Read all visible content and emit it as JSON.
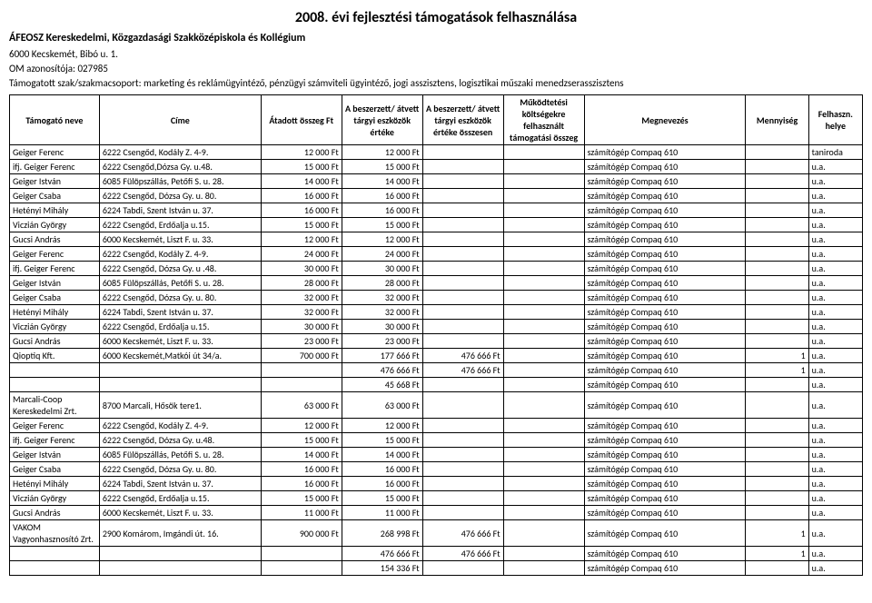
{
  "title": "2008. évi fejlesztési támogatások felhasználása",
  "subtitle": "ÁFEOSZ Kereskedelmi, Közgazdasági Szakközépiskola és Kollégium",
  "address": "6000 Kecskemét, Bibó u. 1.",
  "om": "OM azonosítója: 027985",
  "supported": "Támogatott szak/szakmacsoport: marketing és reklámügyintéző, pénzügyi számviteli ügyintéző, jogi asszisztens, logisztikai műszaki menedzserasszisztens",
  "columns": [
    "Támogató neve",
    "Címe",
    "Átadott összeg Ft",
    "A beszerzett/ átvett tárgyi eszközök értéke",
    "A beszerzett/ átvett tárgyi eszközök értéke összesen",
    "Működtetési költségekre felhasznált támogatási összeg",
    "Megnevezés",
    "Mennyiség",
    "Felhaszn. helye"
  ],
  "rows": [
    [
      "Geiger Ferenc",
      "6222 Csengőd, Kodály Z. 4-9.",
      "12 000 Ft",
      "12 000 Ft",
      "",
      "",
      "számítógép Compaq  610",
      "",
      "taniroda"
    ],
    [
      "ifj. Geiger Ferenc",
      "6222 Csengőd,Dózsa Gy. u.48.",
      "15 000 Ft",
      "15 000 Ft",
      "",
      "",
      "számítógép Compaq  610",
      "",
      "u.a."
    ],
    [
      "Geiger István",
      "6085 Fülöpszállás, Petőfi S. u. 28.",
      "14 000 Ft",
      "14 000 Ft",
      "",
      "",
      "számítógép Compaq  610",
      "",
      "u.a."
    ],
    [
      "Geiger Csaba",
      "6222 Csengőd, Dózsa Gy. u. 80.",
      "16 000 Ft",
      "16 000 Ft",
      "",
      "",
      "számítógép Compaq  610",
      "",
      "u.a."
    ],
    [
      "Hetényi Mihály",
      "6224 Tabdi, Szent István u. 37.",
      "16 000 Ft",
      "16 000 Ft",
      "",
      "",
      "számítógép Compaq  610",
      "",
      "u.a."
    ],
    [
      "Viczián György",
      "6222 Csengőd, Erdőalja u.15.",
      "15 000 Ft",
      "15 000 Ft",
      "",
      "",
      "számítógép Compaq  610",
      "",
      "u.a."
    ],
    [
      "Gucsi András",
      "6000 Kecskemét, Liszt F. u. 33.",
      "12 000 Ft",
      "12 000 Ft",
      "",
      "",
      "számítógép Compaq  610",
      "",
      "u.a."
    ],
    [
      "Geiger Ferenc",
      "6222 Csengőd, Kodály Z. 4-9.",
      "24 000 Ft",
      "24 000 Ft",
      "",
      "",
      "számítógép Compaq  610",
      "",
      "u.a."
    ],
    [
      "ifj. Geiger Ferenc",
      "6222 Csengőd, Dózsa Gy. u .48.",
      "30 000 Ft",
      "30 000 Ft",
      "",
      "",
      "számítógép Compaq  610",
      "",
      "u.a."
    ],
    [
      "Geiger István",
      "6085 Fülöpszállás, Petőfi S. u. 28.",
      "28 000 Ft",
      "28 000 Ft",
      "",
      "",
      "számítógép Compaq  610",
      "",
      "u.a."
    ],
    [
      "Geiger Csaba",
      "6222 Csengőd, Dózsa Gy. u. 80.",
      "32 000 Ft",
      "32 000 Ft",
      "",
      "",
      "számítógép Compaq  610",
      "",
      "u.a."
    ],
    [
      "Hetényi Mihály",
      "6224 Tabdi, Szent István u. 37.",
      "32 000 Ft",
      "32 000 Ft",
      "",
      "",
      "számítógép Compaq  610",
      "",
      "u.a."
    ],
    [
      "Viczián György",
      "6222 Csengőd, Erdőalja u.15.",
      "30 000 Ft",
      "30 000 Ft",
      "",
      "",
      "számítógép Compaq  610",
      "",
      "u.a."
    ],
    [
      "Gucsi András",
      "6000 Kecskemét, Liszt F. u. 33.",
      "23 000 Ft",
      "23 000 Ft",
      "",
      "",
      "számítógép Compaq  610",
      "",
      "u.a."
    ],
    [
      "Qioptiq Kft.",
      "6000 Kecskemét,Matkói út 34/a.",
      "700 000 Ft",
      "177 666 Ft",
      "476 666 Ft",
      "",
      "számítógép Compaq  610",
      "1",
      "u.a."
    ],
    [
      "",
      "",
      "",
      "476 666 Ft",
      "476 666 Ft",
      "",
      "számítógép Compaq  610",
      "1",
      "u.a."
    ],
    [
      "",
      "",
      "",
      "45 668 Ft",
      "",
      "",
      "számítógép Compaq  610",
      "",
      "u.a."
    ],
    [
      "Marcali-Coop Kereskedelmi Zrt.",
      "8700 Marcali, Hősök tere1.",
      "63 000 Ft",
      "63 000 Ft",
      "",
      "",
      "számítógép Compaq  610",
      "",
      "u.a."
    ],
    [
      "Geiger Ferenc",
      "6222 Csengőd, Kodály Z. 4-9.",
      "12 000 Ft",
      "12 000 Ft",
      "",
      "",
      "számítógép Compaq  610",
      "",
      "u.a."
    ],
    [
      "ifj. Geiger Ferenc",
      "6222 Csengőd, Dózsa Gy. u.48.",
      "15 000 Ft",
      "15 000 Ft",
      "",
      "",
      "számítógép Compaq  610",
      "",
      "u.a."
    ],
    [
      "Geiger István",
      "6085 Fülöpszállás, Petőfi S. u. 28.",
      "14 000 Ft",
      "14 000 Ft",
      "",
      "",
      "számítógép Compaq  610",
      "",
      "u.a."
    ],
    [
      "Geiger Csaba",
      "6222 Csengőd, Dózsa Gy. u. 80.",
      "16 000 Ft",
      "16 000 Ft",
      "",
      "",
      "számítógép Compaq  610",
      "",
      "u.a."
    ],
    [
      "Hetényi Mihály",
      "6224 Tabdi, Szent István u. 37.",
      "16 000 Ft",
      "16 000 Ft",
      "",
      "",
      "számítógép Compaq  610",
      "",
      "u.a."
    ],
    [
      "Viczián György",
      "6222 Csengőd, Erdőalja u.15.",
      "15 000 Ft",
      "15 000 Ft",
      "",
      "",
      "számítógép Compaq  610",
      "",
      "u.a."
    ],
    [
      "Gucsi András",
      "6000 Kecskemét, Liszt F. u. 33.",
      "11 000 Ft",
      "11 000 Ft",
      "",
      "",
      "számítógép Compaq  610",
      "",
      "u.a."
    ],
    [
      "VAKOM Vagyonhasznosító Zrt.",
      "2900 Komárom, Imgándi út. 16.",
      "900 000 Ft",
      "268 998 Ft",
      "476 666 Ft",
      "",
      "számítógép Compaq  610",
      "1",
      "u.a."
    ],
    [
      "",
      "",
      "",
      "476 666 Ft",
      "476 666 Ft",
      "",
      "számítógép Compaq  610",
      "1",
      "u.a."
    ],
    [
      "",
      "",
      "",
      "154 336 Ft",
      "",
      "",
      "számítógép Compaq  610",
      "",
      "u.a."
    ]
  ],
  "numeric_cols": [
    2,
    3,
    4,
    5,
    7
  ]
}
